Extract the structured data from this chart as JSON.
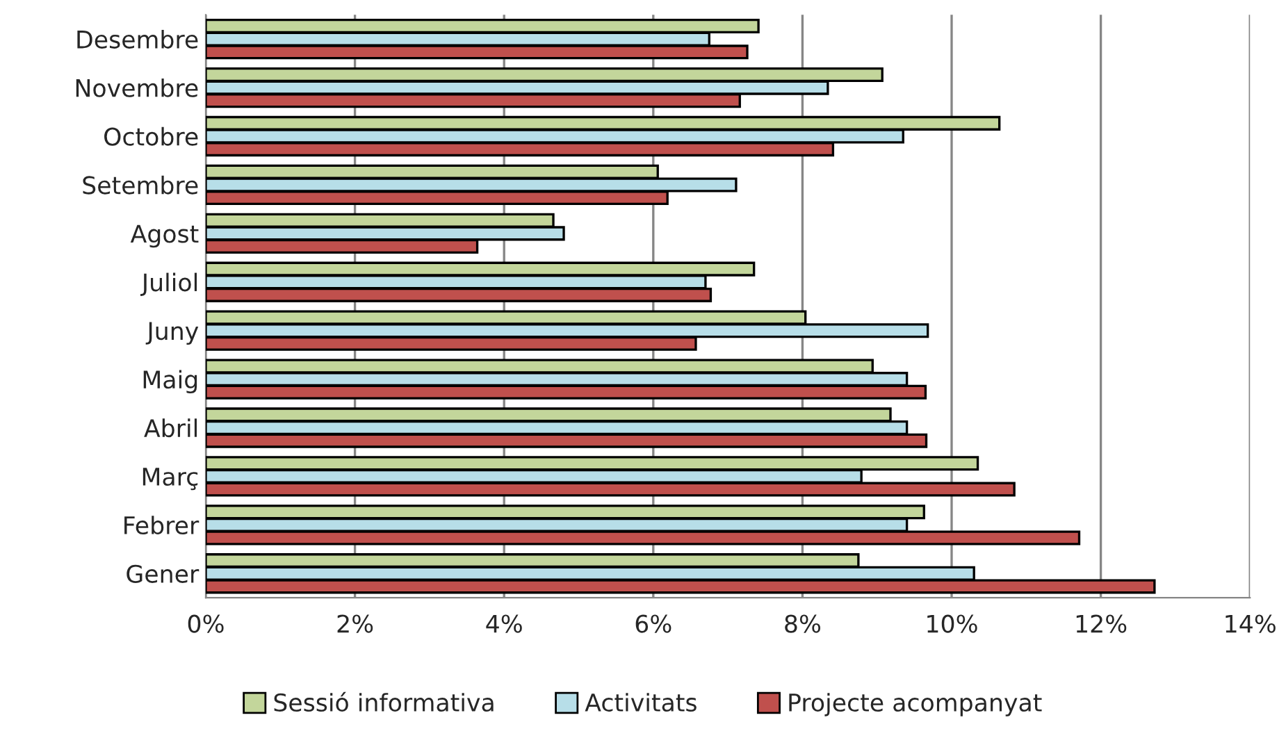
{
  "chart_data": {
    "type": "bar",
    "orientation": "horizontal",
    "categories": [
      "Desembre",
      "Novembre",
      "Octobre",
      "Setembre",
      "Agost",
      "Juliol",
      "Juny",
      "Maig",
      "Abril",
      "Març",
      "Febrer",
      "Gener"
    ],
    "series": [
      {
        "name": "Sessió informativa",
        "color": "#c3d69b",
        "values": [
          7.41,
          9.07,
          10.64,
          6.06,
          4.66,
          7.35,
          8.04,
          8.94,
          9.18,
          10.35,
          9.63,
          8.75
        ]
      },
      {
        "name": "Activitats",
        "color": "#b7dee8",
        "values": [
          6.75,
          8.34,
          9.35,
          7.11,
          4.8,
          6.7,
          9.68,
          9.4,
          9.4,
          8.79,
          9.4,
          10.3
        ]
      },
      {
        "name": "Projecte acompanyat",
        "color": "#c0504d",
        "values": [
          7.26,
          7.16,
          8.41,
          6.19,
          3.64,
          6.77,
          6.57,
          9.65,
          9.66,
          10.84,
          11.71,
          12.72
        ]
      }
    ],
    "xlim": [
      0,
      14
    ],
    "xticks": [
      {
        "value": 0,
        "label": "0%"
      },
      {
        "value": 2,
        "label": "2%"
      },
      {
        "value": 4,
        "label": "4%"
      },
      {
        "value": 6,
        "label": "6%"
      },
      {
        "value": 8,
        "label": "8%"
      },
      {
        "value": 10,
        "label": "10%"
      },
      {
        "value": 12,
        "label": "12%"
      },
      {
        "value": 14,
        "label": "14%"
      }
    ],
    "grid": "x",
    "legend": "bottom"
  }
}
